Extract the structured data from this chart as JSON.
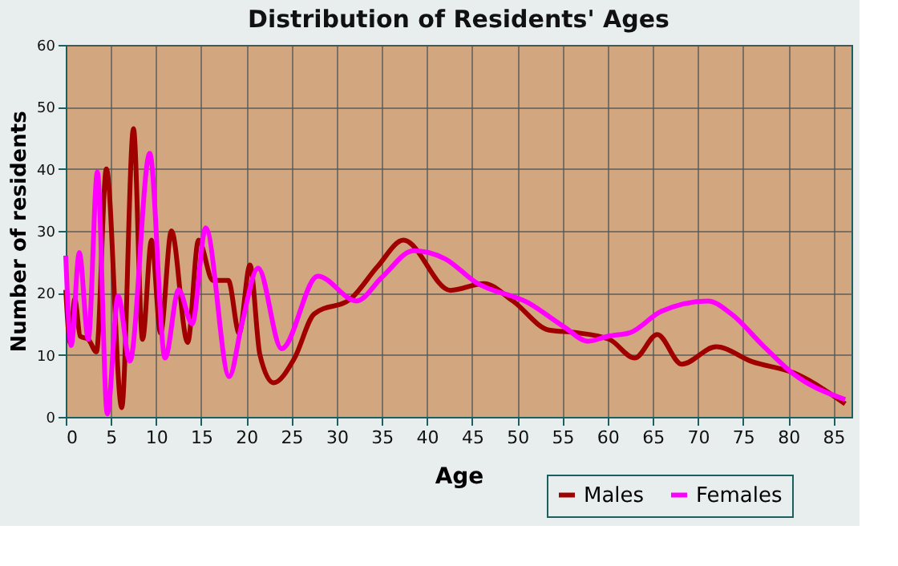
{
  "chart_data": {
    "type": "line",
    "title": "Distribution of Residents' Ages",
    "xlabel": "Age",
    "ylabel": "Number of residents",
    "xlim": [
      0,
      87
    ],
    "xticks": [
      0,
      5,
      10,
      15,
      20,
      25,
      30,
      35,
      40,
      45,
      50,
      55,
      60,
      65,
      70,
      75,
      80,
      85
    ],
    "ylim": [
      0,
      60
    ],
    "yticks": [
      0,
      10,
      20,
      30,
      40,
      50,
      60
    ],
    "grid": true,
    "legend": "bottom right",
    "marker": "none",
    "line_style": "solid",
    "series": [
      {
        "name": "Males",
        "color": "#a00000",
        "x": [
          0,
          0.5,
          1,
          1.6,
          2.5,
          3.4,
          4.5,
          6.2,
          7.5,
          8.5,
          9.5,
          10.5,
          11.7,
          13.5,
          14.7,
          16.3,
          18,
          19.2,
          20.4,
          21.5,
          23,
          25.3,
          27.5,
          31.6,
          34.5,
          37.4,
          42.6,
          46.3,
          49.5,
          53.5,
          56.4,
          60.2,
          63,
          65.5,
          68.2,
          72,
          76,
          80.6,
          86.3
        ],
        "values": [
          20.5,
          12,
          19,
          13,
          12.5,
          10.5,
          40,
          1.5,
          46.5,
          12.5,
          28.5,
          13.5,
          30,
          12,
          28.5,
          22,
          22,
          13.5,
          24.5,
          10,
          5.5,
          9.4,
          16.6,
          19.1,
          24.2,
          28.5,
          20.4,
          21.5,
          18.7,
          14,
          13.6,
          12.5,
          9.5,
          13.3,
          8.5,
          11.3,
          8.9,
          7.1,
          2.1
        ]
      },
      {
        "name": "Females",
        "color": "#ff00ff",
        "x": [
          0,
          0.6,
          1.5,
          2.5,
          3.5,
          4.6,
          5.8,
          7.1,
          9.3,
          11,
          12.5,
          14,
          15.5,
          18.1,
          19.5,
          21.3,
          23.9,
          27.9,
          32.2,
          35,
          38.5,
          42,
          45.4,
          51.2,
          55.2,
          57.8,
          60,
          62.5,
          65.9,
          71.1,
          73.7,
          77.2,
          80.6,
          86.3
        ],
        "values": [
          26,
          11.5,
          26.5,
          12.5,
          39.5,
          0.5,
          19.5,
          9,
          42.5,
          9.5,
          20.5,
          15,
          30.5,
          6.5,
          15,
          24,
          11,
          22.7,
          18.7,
          22.5,
          26.8,
          25.5,
          21.7,
          18.4,
          14.5,
          12.2,
          13,
          13.6,
          17,
          18.7,
          16.6,
          11.5,
          6.9,
          2.8
        ]
      }
    ]
  }
}
